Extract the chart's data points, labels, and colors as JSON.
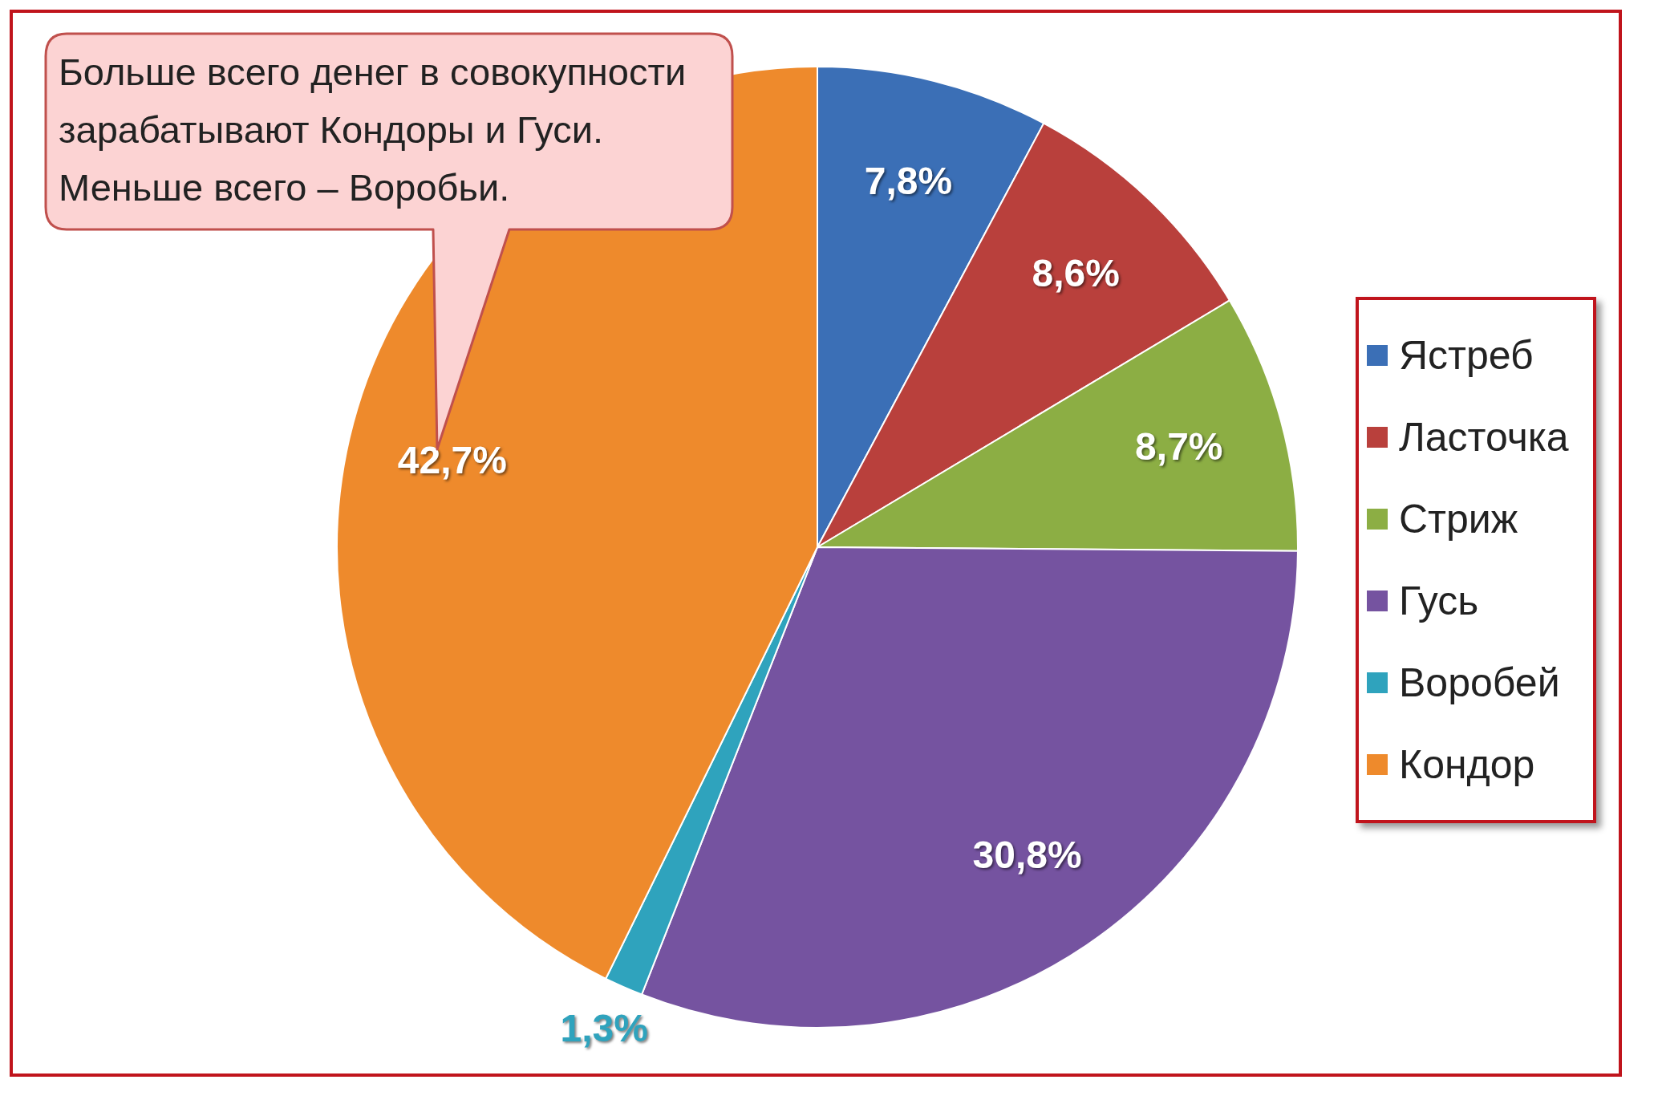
{
  "chart_data": {
    "type": "pie",
    "categories": [
      "Ястреб",
      "Ласточка",
      "Стриж",
      "Гусь",
      "Воробей",
      "Кондор"
    ],
    "values": [
      7.8,
      8.6,
      8.7,
      30.8,
      1.3,
      42.7
    ],
    "value_labels": [
      "7,8%",
      "8,6%",
      "8,7%",
      "30,8%",
      "1,3%",
      "42,7%"
    ],
    "colors": [
      "#3b6fb6",
      "#b9403c",
      "#8cae44",
      "#7553a0",
      "#2fa3bd",
      "#ee8a2c"
    ],
    "legend": "right",
    "annotations": [
      "Больше всего денег в совокупности зарабатывают Кондоры и Гуси. Меньше всего – Воробьи."
    ]
  }
}
